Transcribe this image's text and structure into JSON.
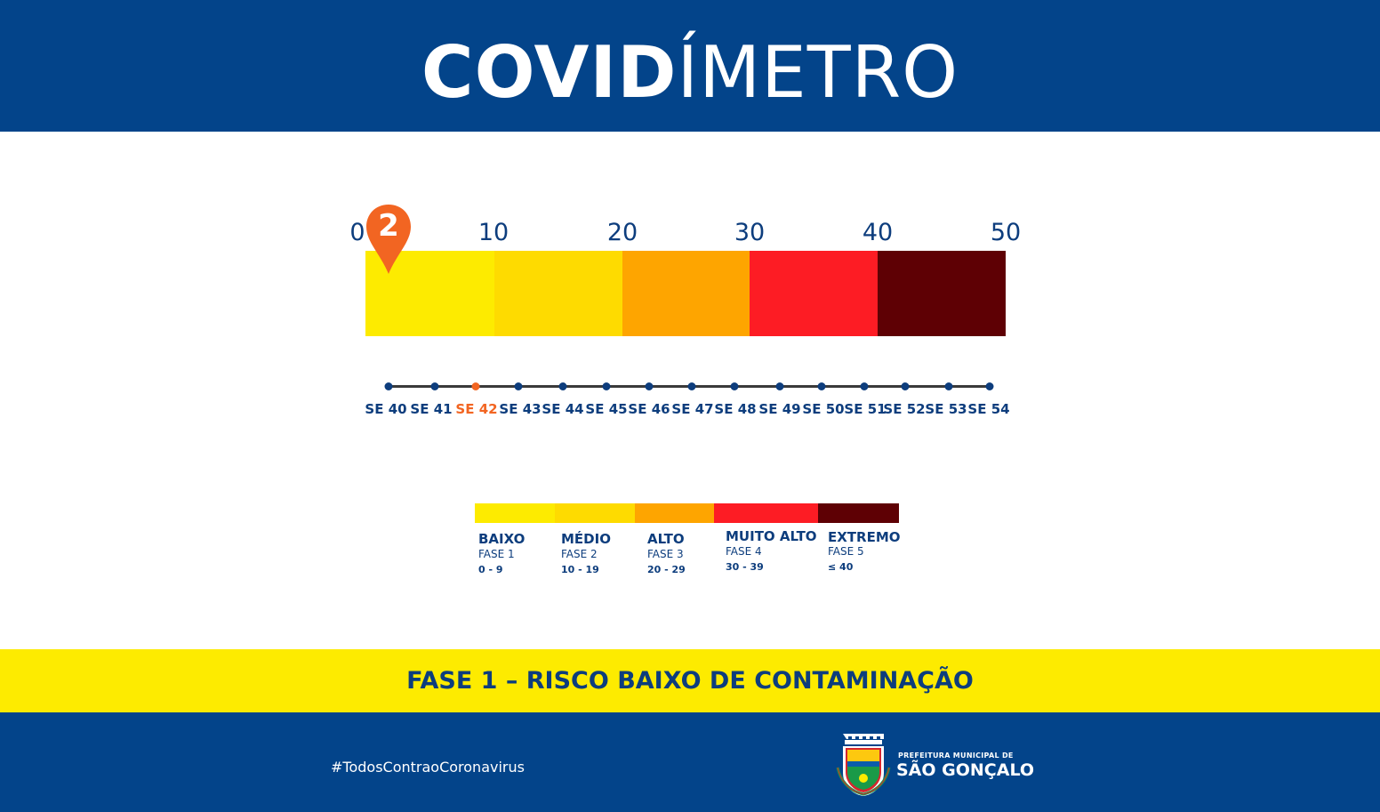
{
  "header": {
    "title_bold": "COVID",
    "title_light": "ÍMETRO"
  },
  "meter": {
    "scale_labels": [
      "0",
      "10",
      "20",
      "30",
      "40",
      "50"
    ],
    "current_value": "2",
    "segment_colors": [
      "#fdeb00",
      "#fedb00",
      "#fea500",
      "#fd1c24",
      "#5e0004"
    ]
  },
  "timeline": {
    "weeks": [
      "SE 40",
      "SE 41",
      "SE 42",
      "SE 43",
      "SE 44",
      "SE 45",
      "SE 46",
      "SE 47",
      "SE 48",
      "SE 49",
      "SE 50",
      "SE 51",
      "SE 52",
      "SE 53",
      "SE 54"
    ],
    "active_week": "SE 42"
  },
  "legend": {
    "items": [
      {
        "name": "BAIXO",
        "phase": "FASE 1",
        "range": "0 - 9",
        "color": "#fdeb00"
      },
      {
        "name": "MÉDIO",
        "phase": "FASE 2",
        "range": "10 - 19",
        "color": "#fedb00"
      },
      {
        "name": "ALTO",
        "phase": "FASE 3",
        "range": "20 - 29",
        "color": "#fea500"
      },
      {
        "name": "MUITO ALTO",
        "phase": "FASE 4",
        "range": "30 - 39",
        "color": "#fd1c24"
      },
      {
        "name": "EXTREMO",
        "phase": "FASE 5",
        "range": "≤ 40",
        "color": "#5e0004"
      }
    ]
  },
  "banner": {
    "text": "FASE 1 – RISCO BAIXO DE CONTAMINAÇÃO"
  },
  "footer": {
    "hashtag": "#TodosContraoCoronavirus",
    "org_line1": "PREFEITURA MUNICIPAL DE",
    "org_line2": "SÃO GONÇALO"
  }
}
